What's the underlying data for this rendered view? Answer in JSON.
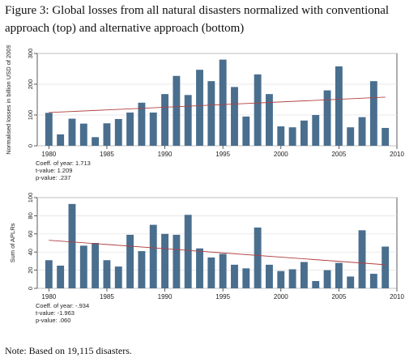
{
  "figure_title": "Figure 3: Global losses from all natural disasters normalized with conventional approach (top) and alternative approach (bottom)",
  "note": "Note: Based on 19,115 disasters.",
  "colors": {
    "bar": "#4a6e8e",
    "trend": "#b04040",
    "frame": "#333333",
    "grid": "#e0e0e0"
  },
  "chart_data": [
    {
      "type": "bar",
      "title": "",
      "xlabel": "",
      "ylabel": "Normalised losses in billion USD of 2009",
      "xlim": [
        1979,
        2010
      ],
      "ylim": [
        0,
        300
      ],
      "yticks": [
        0,
        100,
        200,
        300
      ],
      "xticks": [
        1980,
        1985,
        1990,
        1995,
        2000,
        2005,
        2010
      ],
      "x": [
        1980,
        1981,
        1982,
        1983,
        1984,
        1985,
        1986,
        1987,
        1988,
        1989,
        1990,
        1991,
        1992,
        1993,
        1994,
        1995,
        1996,
        1997,
        1998,
        1999,
        2000,
        2001,
        2002,
        2003,
        2004,
        2005,
        2006,
        2007,
        2008,
        2009
      ],
      "values": [
        107,
        37,
        88,
        72,
        28,
        73,
        87,
        108,
        140,
        108,
        168,
        227,
        165,
        247,
        210,
        280,
        191,
        95,
        232,
        168,
        63,
        60,
        82,
        100,
        180,
        258,
        60,
        93,
        210,
        58
      ],
      "trend": {
        "x": [
          1980,
          2009
        ],
        "y": [
          108,
          158
        ]
      },
      "stats": [
        "Coeff. of year: 1.713",
        "t-value: 1.209",
        "p-value: .237"
      ]
    },
    {
      "type": "bar",
      "title": "",
      "xlabel": "",
      "ylabel": "Sum of APLRs",
      "xlim": [
        1979,
        2010
      ],
      "ylim": [
        0,
        100
      ],
      "yticks": [
        0,
        20,
        40,
        60,
        80,
        100
      ],
      "xticks": [
        1980,
        1985,
        1990,
        1995,
        2000,
        2005,
        2010
      ],
      "x": [
        1980,
        1981,
        1982,
        1983,
        1984,
        1985,
        1986,
        1987,
        1988,
        1989,
        1990,
        1991,
        1992,
        1993,
        1994,
        1995,
        1996,
        1997,
        1998,
        1999,
        2000,
        2001,
        2002,
        2003,
        2004,
        2005,
        2006,
        2007,
        2008,
        2009
      ],
      "values": [
        31,
        25,
        93,
        47,
        50,
        31,
        24,
        59,
        41,
        70,
        60,
        59,
        81,
        44,
        34,
        38,
        26,
        22,
        67,
        26,
        19,
        21,
        29,
        8,
        20,
        28,
        13,
        64,
        16,
        46
      ],
      "trend": {
        "x": [
          1980,
          2009
        ],
        "y": [
          53,
          26
        ]
      },
      "stats": [
        "Coeff. of year: -.934",
        "t-value: -1.963",
        "p-value: .060"
      ]
    }
  ]
}
